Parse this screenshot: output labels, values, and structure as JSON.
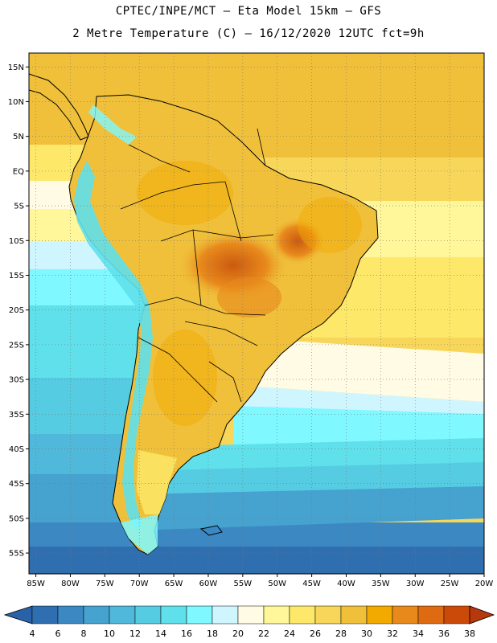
{
  "header": {
    "line1": "CPTEC/INPE/MCT –  Eta Model 15km – GFS",
    "line2": "2 Metre Temperature (C) – 16/12/2020 12UTC fct=9h"
  },
  "map": {
    "lon_range": [
      -86,
      -20
    ],
    "lat_range": [
      17,
      -58
    ],
    "lat_ticks": [
      {
        "v": 15,
        "label": "15N"
      },
      {
        "v": 10,
        "label": "10N"
      },
      {
        "v": 5,
        "label": "5N"
      },
      {
        "v": 0,
        "label": "EQ"
      },
      {
        "v": -5,
        "label": "5S"
      },
      {
        "v": -10,
        "label": "10S"
      },
      {
        "v": -15,
        "label": "15S"
      },
      {
        "v": -20,
        "label": "20S"
      },
      {
        "v": -25,
        "label": "25S"
      },
      {
        "v": -30,
        "label": "30S"
      },
      {
        "v": -35,
        "label": "35S"
      },
      {
        "v": -40,
        "label": "40S"
      },
      {
        "v": -45,
        "label": "45S"
      },
      {
        "v": -50,
        "label": "50S"
      },
      {
        "v": -55,
        "label": "55S"
      }
    ],
    "lon_ticks": [
      {
        "v": -85,
        "label": "85W"
      },
      {
        "v": -80,
        "label": "80W"
      },
      {
        "v": -75,
        "label": "75W"
      },
      {
        "v": -70,
        "label": "70W"
      },
      {
        "v": -65,
        "label": "65W"
      },
      {
        "v": -60,
        "label": "60W"
      },
      {
        "v": -55,
        "label": "55W"
      },
      {
        "v": -50,
        "label": "50W"
      },
      {
        "v": -45,
        "label": "45W"
      },
      {
        "v": -40,
        "label": "40W"
      },
      {
        "v": -35,
        "label": "35W"
      },
      {
        "v": -30,
        "label": "30W"
      },
      {
        "v": -25,
        "label": "25W"
      },
      {
        "v": -20,
        "label": "20W"
      }
    ],
    "grid": "dotted"
  },
  "colorbar": {
    "levels": [
      "4",
      "6",
      "8",
      "10",
      "12",
      "14",
      "16",
      "18",
      "20",
      "22",
      "24",
      "26",
      "28",
      "30",
      "32",
      "34",
      "36",
      "38"
    ],
    "colors": [
      "#2f6fb0",
      "#3b88c2",
      "#46a2cf",
      "#50b8db",
      "#56cce2",
      "#5fe0eb",
      "#7ff8ff",
      "#cff6ff",
      "#fffbe4",
      "#fff79a",
      "#fde86a",
      "#f7d65a",
      "#f0c03a",
      "#f2a900",
      "#e8891c",
      "#de6a12",
      "#cb4a0a"
    ],
    "under_color": "#2a62a8",
    "over_color": "#b7380a"
  }
}
